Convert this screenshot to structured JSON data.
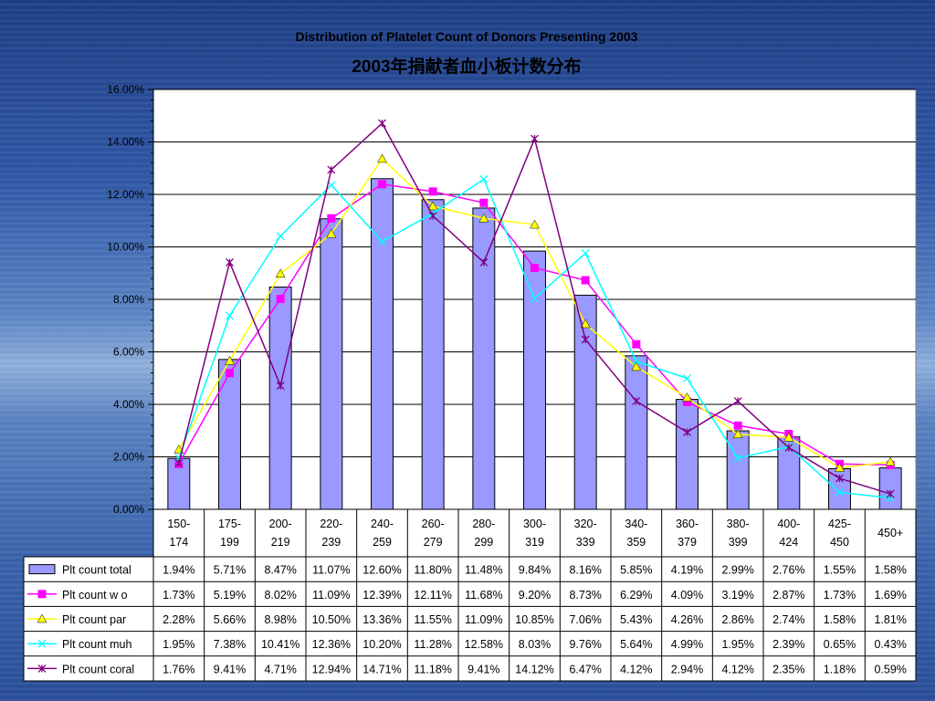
{
  "chart_data": {
    "type": "bar",
    "title": "Distribution of Platelet Count of Donors Presenting 2003",
    "subtitle": "2003年捐献者血小板计数分布",
    "xlabel": "",
    "ylabel": "",
    "ylim": [
      0,
      16
    ],
    "y_ticks": [
      "0.00%",
      "2.00%",
      "4.00%",
      "6.00%",
      "8.00%",
      "10.00%",
      "12.00%",
      "14.00%",
      "16.00%"
    ],
    "grid": true,
    "legend_placement": "data-table-left",
    "categories": [
      [
        "150-",
        "174"
      ],
      [
        "175-",
        "199"
      ],
      [
        "200-",
        "219"
      ],
      [
        "220-",
        "239"
      ],
      [
        "240-",
        "259"
      ],
      [
        "260-",
        "279"
      ],
      [
        "280-",
        "299"
      ],
      [
        "300-",
        "319"
      ],
      [
        "320-",
        "339"
      ],
      [
        "340-",
        "359"
      ],
      [
        "360-",
        "379"
      ],
      [
        "380-",
        "399"
      ],
      [
        "400-",
        "424"
      ],
      [
        "425-",
        "450"
      ],
      [
        "450+"
      ]
    ],
    "series": [
      {
        "name": "Plt count total",
        "kind": "bar",
        "color": "#9999ff",
        "marker": "bar",
        "values": [
          1.94,
          5.71,
          8.47,
          11.07,
          12.6,
          11.8,
          11.48,
          9.84,
          8.16,
          5.85,
          4.19,
          2.99,
          2.76,
          1.55,
          1.58
        ],
        "labels": [
          "1.94%",
          "5.71%",
          "8.47%",
          "11.07%",
          "12.60%",
          "11.80%",
          "11.48%",
          "9.84%",
          "8.16%",
          "5.85%",
          "4.19%",
          "2.99%",
          "2.76%",
          "1.55%",
          "1.58%"
        ]
      },
      {
        "name": "Plt count w o",
        "kind": "line",
        "color": "#ff00ff",
        "marker": "square",
        "values": [
          1.73,
          5.19,
          8.02,
          11.09,
          12.39,
          12.11,
          11.68,
          9.2,
          8.73,
          6.29,
          4.09,
          3.19,
          2.87,
          1.73,
          1.69
        ],
        "labels": [
          "1.73%",
          "5.19%",
          "8.02%",
          "11.09%",
          "12.39%",
          "12.11%",
          "11.68%",
          "9.20%",
          "8.73%",
          "6.29%",
          "4.09%",
          "3.19%",
          "2.87%",
          "1.73%",
          "1.69%"
        ]
      },
      {
        "name": "Plt count par",
        "kind": "line",
        "color": "#ffff00",
        "marker": "triangle",
        "values": [
          2.28,
          5.66,
          8.98,
          10.5,
          13.36,
          11.55,
          11.09,
          10.85,
          7.06,
          5.43,
          4.26,
          2.86,
          2.74,
          1.58,
          1.81
        ],
        "labels": [
          "2.28%",
          "5.66%",
          "8.98%",
          "10.50%",
          "13.36%",
          "11.55%",
          "11.09%",
          "10.85%",
          "7.06%",
          "5.43%",
          "4.26%",
          "2.86%",
          "2.74%",
          "1.58%",
          "1.81%"
        ]
      },
      {
        "name": "Plt count muh",
        "kind": "line",
        "color": "#00ffff",
        "marker": "x",
        "values": [
          1.95,
          7.38,
          10.41,
          12.36,
          10.2,
          11.28,
          12.58,
          8.03,
          9.76,
          5.64,
          4.99,
          1.95,
          2.39,
          0.65,
          0.43
        ],
        "labels": [
          "1.95%",
          "7.38%",
          "10.41%",
          "12.36%",
          "10.20%",
          "11.28%",
          "12.58%",
          "8.03%",
          "9.76%",
          "5.64%",
          "4.99%",
          "1.95%",
          "2.39%",
          "0.65%",
          "0.43%"
        ]
      },
      {
        "name": "Plt count coral",
        "kind": "line",
        "color": "#800080",
        "marker": "star",
        "values": [
          1.76,
          9.41,
          4.71,
          12.94,
          14.71,
          11.18,
          9.41,
          14.12,
          6.47,
          4.12,
          2.94,
          4.12,
          2.35,
          1.18,
          0.59
        ],
        "labels": [
          "1.76%",
          "9.41%",
          "4.71%",
          "12.94%",
          "14.71%",
          "11.18%",
          "9.41%",
          "14.12%",
          "6.47%",
          "4.12%",
          "2.94%",
          "4.12%",
          "2.35%",
          "1.18%",
          "0.59%"
        ]
      }
    ]
  }
}
